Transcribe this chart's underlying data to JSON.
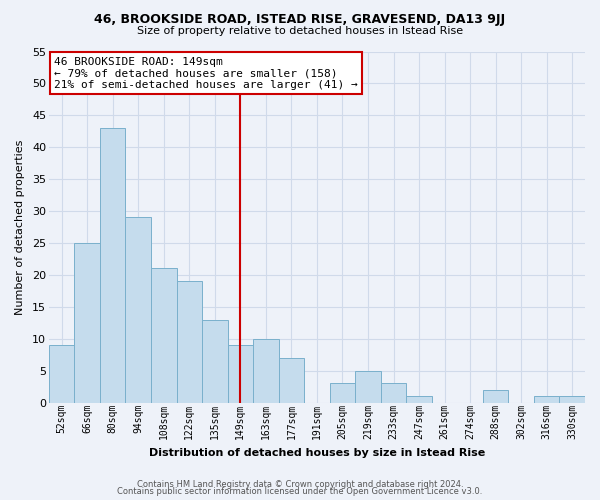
{
  "title": "46, BROOKSIDE ROAD, ISTEAD RISE, GRAVESEND, DA13 9JJ",
  "subtitle": "Size of property relative to detached houses in Istead Rise",
  "xlabel": "Distribution of detached houses by size in Istead Rise",
  "ylabel": "Number of detached properties",
  "bar_color": "#c5dced",
  "bar_edge_color": "#7ab0cc",
  "background_color": "#eef2f9",
  "grid_color": "#d0daea",
  "categories": [
    "52sqm",
    "66sqm",
    "80sqm",
    "94sqm",
    "108sqm",
    "122sqm",
    "135sqm",
    "149sqm",
    "163sqm",
    "177sqm",
    "191sqm",
    "205sqm",
    "219sqm",
    "233sqm",
    "247sqm",
    "261sqm",
    "274sqm",
    "288sqm",
    "302sqm",
    "316sqm",
    "330sqm"
  ],
  "values": [
    9,
    25,
    43,
    29,
    21,
    19,
    13,
    9,
    10,
    7,
    0,
    3,
    5,
    3,
    1,
    0,
    0,
    2,
    0,
    1,
    1
  ],
  "ylim": [
    0,
    55
  ],
  "yticks": [
    0,
    5,
    10,
    15,
    20,
    25,
    30,
    35,
    40,
    45,
    50,
    55
  ],
  "ref_line_index": 7,
  "ref_line_color": "#cc0000",
  "annotation_title": "46 BROOKSIDE ROAD: 149sqm",
  "annotation_line1": "← 79% of detached houses are smaller (158)",
  "annotation_line2": "21% of semi-detached houses are larger (41) →",
  "footer_line1": "Contains HM Land Registry data © Crown copyright and database right 2024.",
  "footer_line2": "Contains public sector information licensed under the Open Government Licence v3.0."
}
